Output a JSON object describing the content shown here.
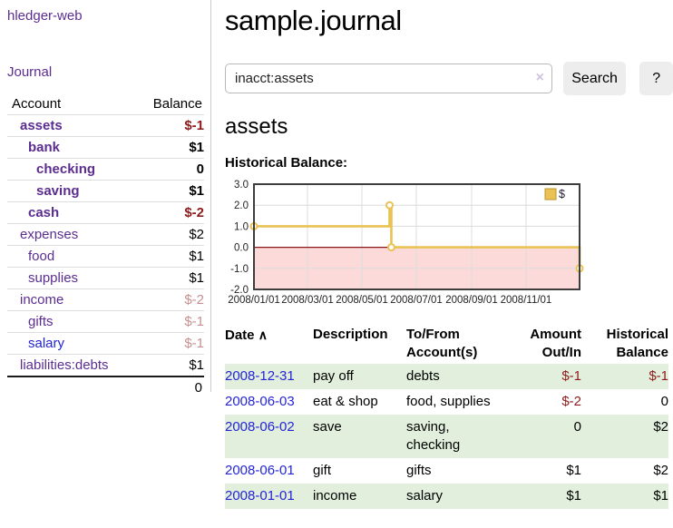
{
  "sidebar": {
    "brand": "hledger-web",
    "journal_label": "Journal",
    "accounts": {
      "headers": [
        "Account",
        "Balance"
      ],
      "rows": [
        {
          "account": "assets",
          "balance": "$-1",
          "level": 1,
          "emph": true,
          "bal_class": "neg-strong"
        },
        {
          "account": "bank",
          "balance": "$1",
          "level": 2,
          "emph": true,
          "bal_class": ""
        },
        {
          "account": "checking",
          "balance": "0",
          "level": 3,
          "emph": true,
          "bal_class": ""
        },
        {
          "account": "saving",
          "balance": "$1",
          "level": 3,
          "emph": true,
          "bal_class": ""
        },
        {
          "account": "cash",
          "balance": "$-2",
          "level": 2,
          "emph": true,
          "bal_class": "neg-strong"
        },
        {
          "account": "expenses",
          "balance": "$2",
          "level": 1,
          "emph": false,
          "bal_class": ""
        },
        {
          "account": "food",
          "balance": "$1",
          "level": 2,
          "emph": false,
          "bal_class": ""
        },
        {
          "account": "supplies",
          "balance": "$1",
          "level": 2,
          "emph": false,
          "bal_class": ""
        },
        {
          "account": "income",
          "balance": "$-2",
          "level": 1,
          "emph": false,
          "bal_class": "neg-dim"
        },
        {
          "account": "gifts",
          "balance": "$-1",
          "level": 2,
          "emph": false,
          "bal_class": "neg-dim"
        },
        {
          "account": "salary",
          "balance": "$-1",
          "level": 2,
          "emph": false,
          "bal_class": "neg-dim",
          "link_blue": true
        },
        {
          "account": "liabilities:debts",
          "balance": "$1",
          "level": 1,
          "emph": false,
          "bal_class": ""
        }
      ],
      "total": "0"
    }
  },
  "main": {
    "title": "sample.journal",
    "search": {
      "value": "inacct:assets",
      "clear_icon": "×",
      "button_label": "Search",
      "help_label": "?"
    },
    "account_heading": "assets"
  },
  "chart_data": {
    "type": "line",
    "step": "after",
    "title": "Historical Balance:",
    "xlabel": "",
    "ylabel": "",
    "ylim": [
      -2,
      3
    ],
    "x_domain": [
      "2008-01-01",
      "2008-12-31"
    ],
    "series": [
      {
        "name": "$",
        "color": "#e9c253",
        "points": [
          [
            "2008-01-01",
            1
          ],
          [
            "2008-06-01",
            2
          ],
          [
            "2008-06-03",
            0
          ],
          [
            "2008-12-31",
            -1
          ]
        ]
      }
    ],
    "y_ticks": [
      {
        "value": 3,
        "label": "3.0"
      },
      {
        "value": 2,
        "label": "2.0"
      },
      {
        "value": 1,
        "label": "1.0"
      },
      {
        "value": 0,
        "label": "0.0"
      },
      {
        "value": -1,
        "label": "-1.0"
      },
      {
        "value": -2,
        "label": "-2.0"
      }
    ],
    "x_ticks": [
      {
        "date": "2008-01-01",
        "label": "2008/01/01"
      },
      {
        "date": "2008-03-01",
        "label": "2008/03/01"
      },
      {
        "date": "2008-05-01",
        "label": "2008/05/01"
      },
      {
        "date": "2008-07-01",
        "label": "2008/07/01"
      },
      {
        "date": "2008-09-01",
        "label": "2008/09/01"
      },
      {
        "date": "2008-11-01",
        "label": "2008/11/01"
      }
    ],
    "legend": {
      "label": "$",
      "position": "top-right",
      "swatch_fill": "#e9c253",
      "swatch_border": "#bb9530"
    },
    "grid": true,
    "negative_region_fill": "#fcdada",
    "zero_line_color": "#8b1818",
    "border_color": "#3d3d3d",
    "grid_color": "#dcdcdc"
  },
  "register": {
    "headers": {
      "date": "Date",
      "description": "Description",
      "accounts": "To/From Account(s)",
      "amount": "Amount Out/In",
      "balance": "Historical Balance"
    },
    "sort_icon": "∧",
    "rows": [
      {
        "date": "2008-12-31",
        "description": "pay off",
        "accounts": "debts",
        "amount": "$-1",
        "balance": "$-1",
        "amount_neg": true,
        "balance_neg": true
      },
      {
        "date": "2008-06-03",
        "description": "eat & shop",
        "accounts": "food, supplies",
        "amount": "$-2",
        "balance": "0",
        "amount_neg": true,
        "balance_neg": false
      },
      {
        "date": "2008-06-02",
        "description": "save",
        "accounts": "saving, checking",
        "amount": "0",
        "balance": "$2",
        "amount_neg": false,
        "balance_neg": false
      },
      {
        "date": "2008-06-01",
        "description": "gift",
        "accounts": "gifts",
        "amount": "$1",
        "balance": "$2",
        "amount_neg": false,
        "balance_neg": false
      },
      {
        "date": "2008-01-01",
        "description": "income",
        "accounts": "salary",
        "amount": "$1",
        "balance": "$1",
        "amount_neg": false,
        "balance_neg": false
      }
    ]
  }
}
